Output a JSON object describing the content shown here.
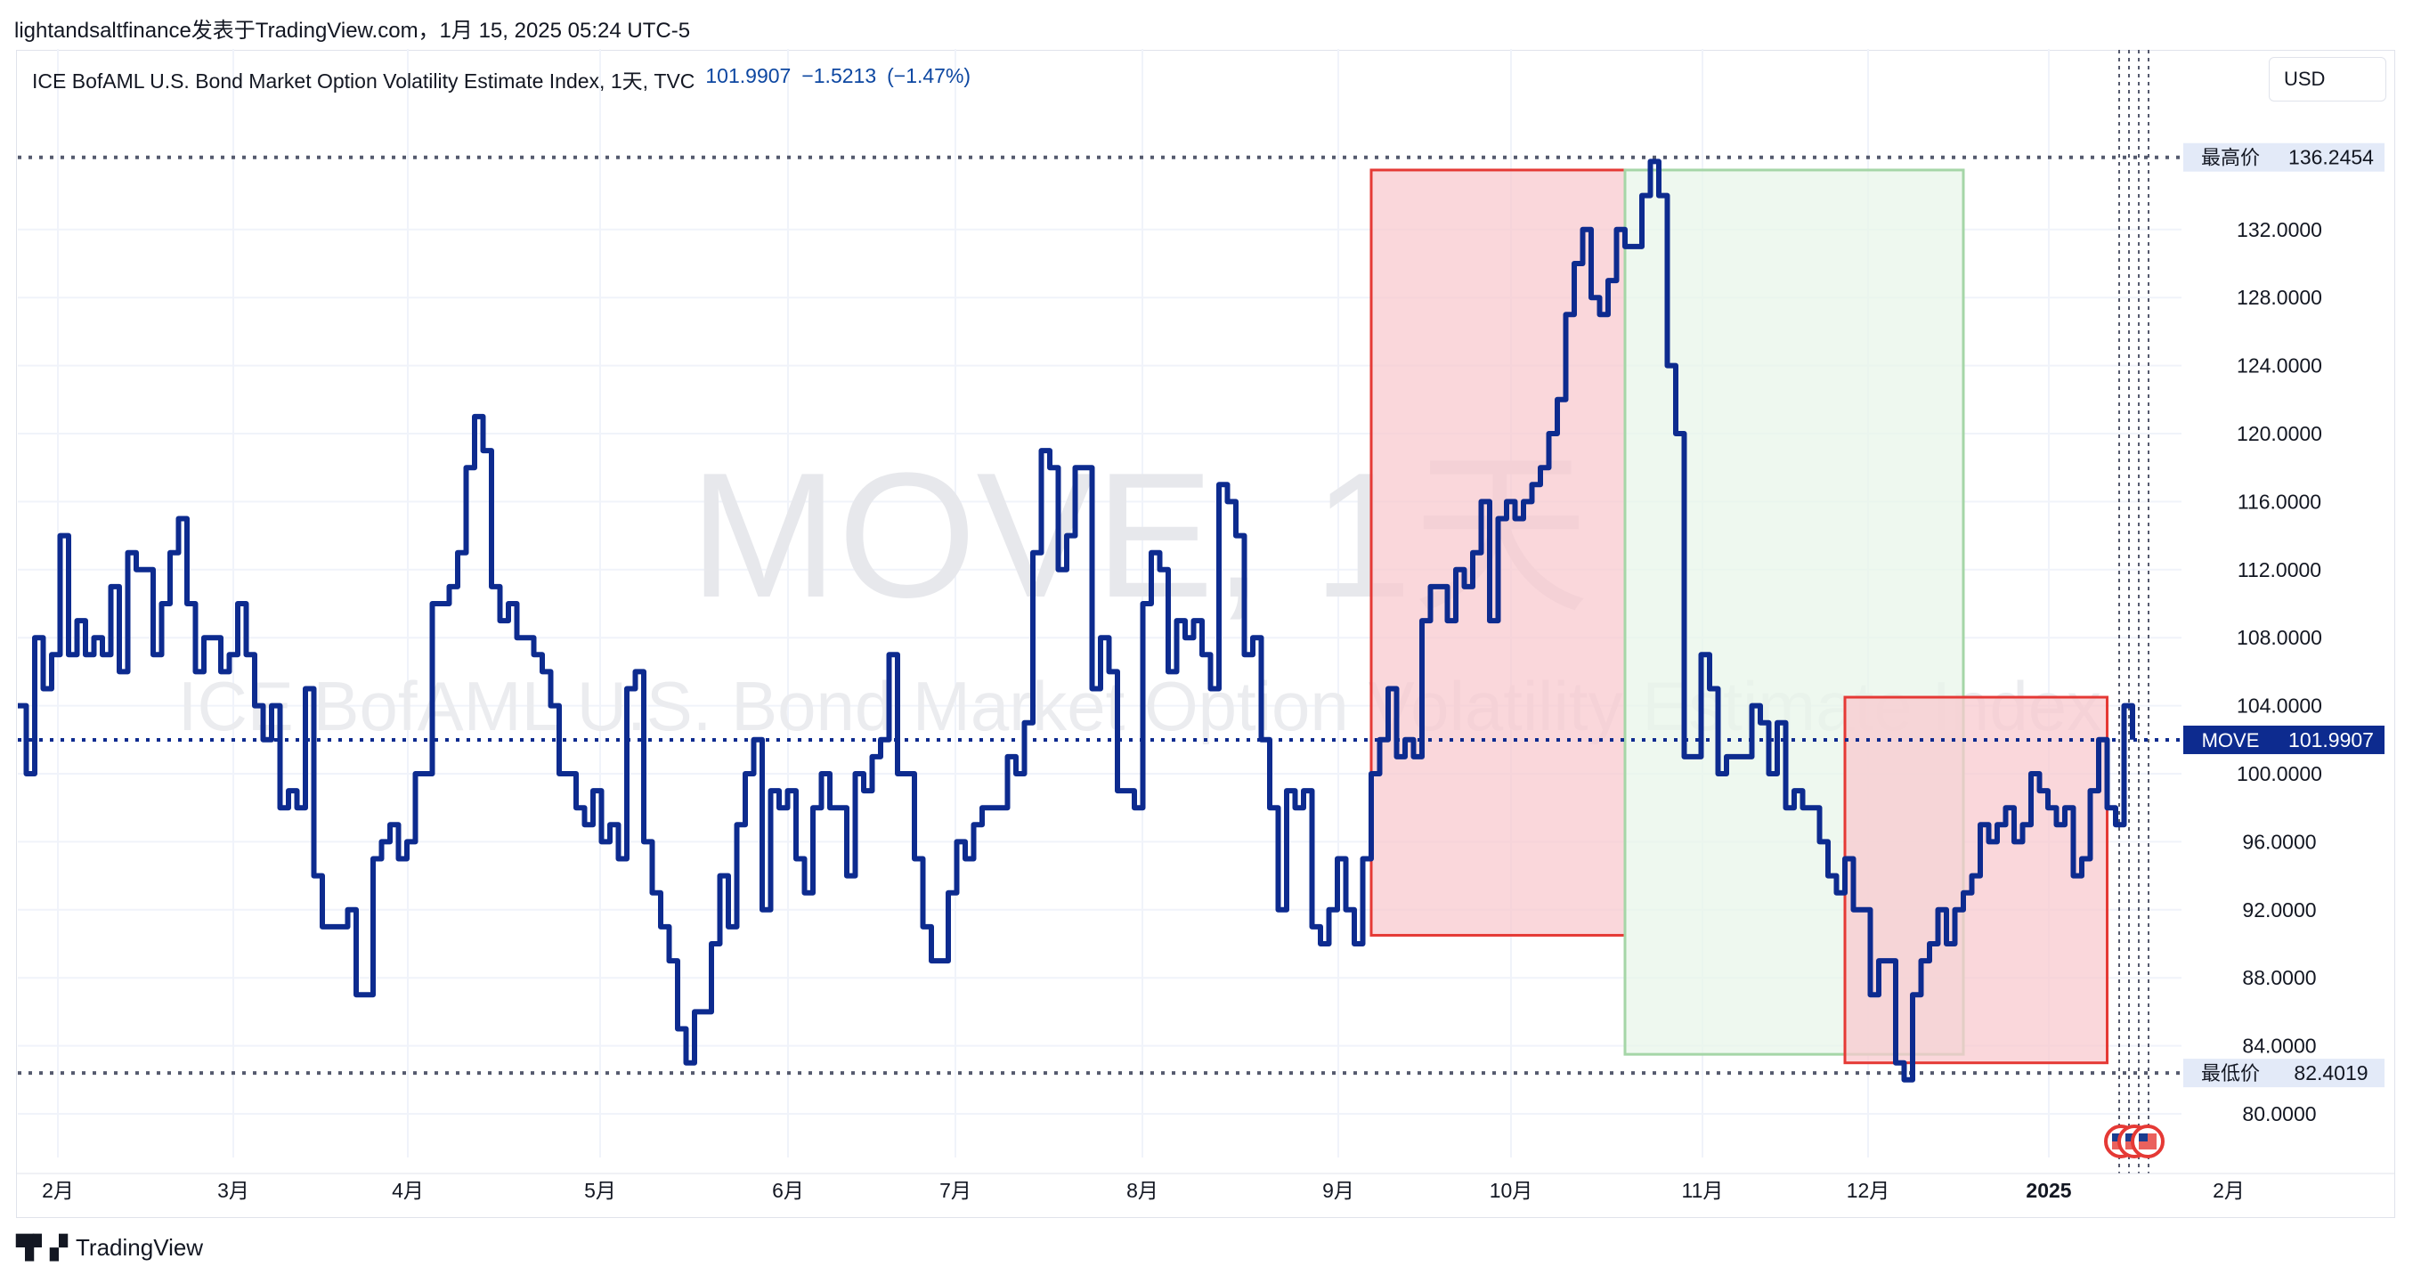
{
  "header": {
    "text": "lightandsaltfinance发表于TradingView.com，1月 15, 2025 05:24 UTC-5"
  },
  "legend": {
    "title": "ICE BofAML U.S. Bond Market Option Volatility Estimate Index, 1天, TVC",
    "last": "101.9907",
    "change": "−1.5213",
    "change_pct": "(−1.47%)"
  },
  "currency": "USD",
  "watermark": {
    "symbol": "MOVE, 1天",
    "name": "ICE BofAML U.S. Bond Market Option Volatility Estimate Index"
  },
  "footer": {
    "logo_icon": "tradingview-logo-icon",
    "brand": "TradingView"
  },
  "colors": {
    "line": "#0d2b8f",
    "red_box_fill": "#f8c9cf",
    "red_box_border": "#e53935",
    "green_box_fill": "#e8f5e9",
    "green_box_border": "#a5d6a7",
    "price_tag": "#0d2b8f"
  },
  "labels": {
    "high": {
      "name": "最高价",
      "value": "136.2454"
    },
    "low": {
      "name": "最低价",
      "value": "82.4019"
    },
    "current": {
      "name": "MOVE",
      "value": "101.9907"
    }
  },
  "chart_data": {
    "type": "line",
    "ylim": [
      78,
      139
    ],
    "y_ticks": [
      "80.0000",
      "84.0000",
      "88.0000",
      "92.0000",
      "96.0000",
      "100.0000",
      "104.0000",
      "108.0000",
      "112.0000",
      "116.0000",
      "120.0000",
      "124.0000",
      "128.0000",
      "132.0000"
    ],
    "x_labels": [
      "2月",
      "3月",
      "4月",
      "5月",
      "6月",
      "7月",
      "8月",
      "9月",
      "10月",
      "11月",
      "12月",
      "2025",
      "2月"
    ],
    "series": [
      {
        "values": [
          104,
          100,
          108,
          105,
          107,
          114,
          107,
          109,
          107,
          108,
          107,
          111,
          106,
          113,
          112,
          112,
          107,
          110,
          113,
          115,
          110,
          106,
          108,
          108,
          106,
          107,
          110,
          107,
          104,
          102,
          104,
          98,
          99,
          98,
          105,
          94,
          91,
          91,
          91,
          92,
          87,
          87,
          95,
          96,
          97,
          95,
          96,
          100,
          100,
          110,
          110,
          111,
          113,
          118,
          121,
          119,
          111,
          109,
          110,
          108,
          108,
          107,
          106,
          104,
          100,
          100,
          98,
          97,
          99,
          96,
          97,
          95,
          105,
          106,
          96,
          93,
          91,
          89,
          85,
          83,
          86,
          86,
          90,
          94,
          91,
          97,
          100,
          102,
          92,
          99,
          98,
          99,
          95,
          93,
          98,
          100,
          98,
          98,
          94,
          100,
          99,
          101,
          102,
          107,
          100,
          100,
          95,
          91,
          89,
          89,
          93,
          96,
          95,
          97,
          98,
          98,
          98,
          101,
          100,
          103,
          113,
          119,
          118,
          112,
          114,
          118,
          118,
          105,
          108,
          106,
          99,
          99,
          98,
          110,
          113,
          112,
          106,
          109,
          108,
          109,
          107,
          105,
          117,
          116,
          114,
          107,
          108,
          102,
          98,
          92,
          99,
          98,
          99,
          91,
          90,
          92,
          95,
          92,
          90,
          95,
          100,
          102,
          105,
          101,
          102,
          101,
          109,
          111,
          111,
          109,
          112,
          111,
          113,
          116,
          109,
          115,
          116,
          115,
          116,
          117,
          118,
          120,
          122,
          127,
          130,
          132,
          128,
          127,
          129,
          132,
          131,
          131,
          134,
          136,
          134,
          124,
          120,
          101,
          101,
          107,
          105,
          100,
          101,
          101,
          101,
          104,
          103,
          100,
          103,
          98,
          99,
          98,
          98,
          96,
          94,
          93,
          95,
          92,
          92,
          87,
          89,
          89,
          83,
          82,
          87,
          89,
          90,
          92,
          90,
          92,
          93,
          94,
          97,
          96,
          97,
          98,
          96,
          97,
          100,
          99,
          98,
          97,
          98,
          94,
          95,
          99,
          102,
          98,
          97,
          104,
          102
        ]
      }
    ],
    "shapes": [
      {
        "kind": "rectangle",
        "color": "red",
        "from_index": 160,
        "to_index": 190,
        "y_range": [
          90.5,
          135.5
        ]
      },
      {
        "kind": "rectangle",
        "color": "green",
        "from_index": 190,
        "to_index": 230,
        "y_range": [
          83.5,
          135.5
        ]
      },
      {
        "kind": "rectangle",
        "color": "red",
        "from_index": 216,
        "to_index": 247,
        "y_range": [
          83.0,
          104.5
        ]
      }
    ],
    "grid": true
  }
}
